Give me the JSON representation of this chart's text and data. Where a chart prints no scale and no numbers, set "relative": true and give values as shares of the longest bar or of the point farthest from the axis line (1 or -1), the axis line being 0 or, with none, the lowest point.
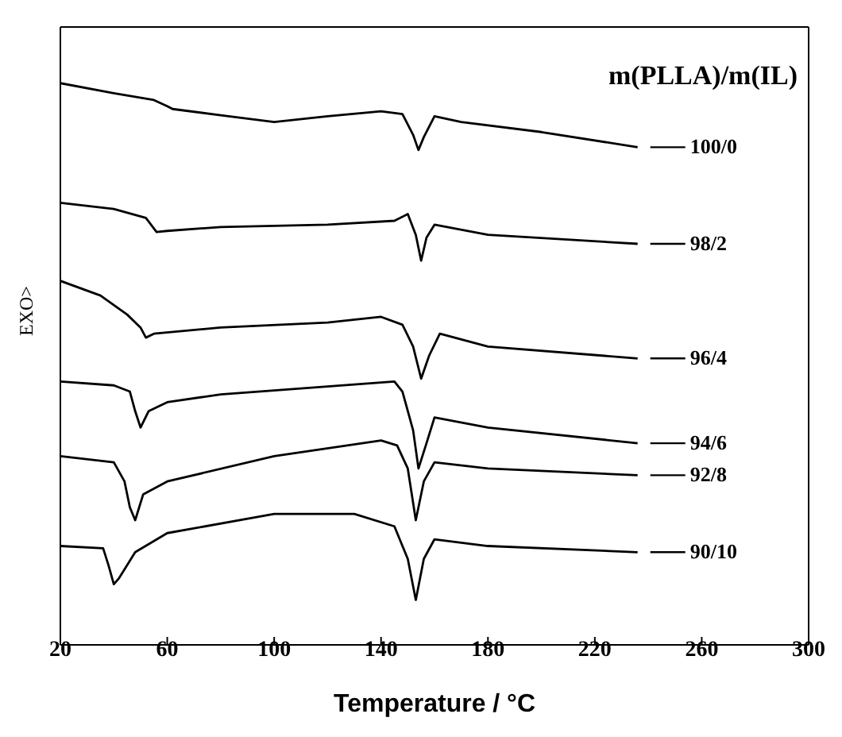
{
  "chart_data": {
    "type": "line",
    "xlabel": "Temperature / °C",
    "ylabel": "EXO>",
    "legend_title": "m(PLLA)/m(IL)",
    "relative": true,
    "xlim": [
      20,
      300
    ],
    "xticks": [
      20,
      60,
      100,
      140,
      180,
      220,
      260,
      300
    ],
    "marker": "none",
    "legend": "right",
    "line_style": "solid",
    "series": [
      {
        "name": "100/0",
        "color": "#000000",
        "x": [
          20,
          40,
          55,
          60,
          62,
          80,
          100,
          120,
          140,
          148,
          152,
          154,
          156,
          160,
          170,
          200,
          236
        ],
        "values": [
          1.0,
          0.982,
          0.97,
          0.959,
          0.954,
          0.943,
          0.931,
          0.941,
          0.95,
          0.945,
          0.908,
          0.881,
          0.904,
          0.941,
          0.931,
          0.913,
          0.886
        ]
      },
      {
        "name": "98/2",
        "color": "#000000",
        "x": [
          20,
          40,
          52,
          56,
          60,
          80,
          120,
          145,
          150,
          153,
          155,
          157,
          160,
          180,
          236
        ],
        "values": [
          0.787,
          0.776,
          0.76,
          0.735,
          0.737,
          0.744,
          0.748,
          0.755,
          0.767,
          0.73,
          0.684,
          0.725,
          0.748,
          0.73,
          0.714
        ]
      },
      {
        "name": "96/4",
        "color": "#000000",
        "x": [
          20,
          35,
          45,
          50,
          52,
          55,
          80,
          120,
          140,
          148,
          152,
          155,
          158,
          162,
          180,
          236
        ],
        "values": [
          0.648,
          0.622,
          0.588,
          0.565,
          0.547,
          0.554,
          0.565,
          0.574,
          0.584,
          0.57,
          0.531,
          0.474,
          0.515,
          0.554,
          0.531,
          0.51
        ]
      },
      {
        "name": "94/6",
        "color": "#000000",
        "x": [
          20,
          40,
          46,
          48,
          50,
          53,
          60,
          80,
          120,
          145,
          148,
          152,
          154,
          157,
          160,
          180,
          236
        ],
        "values": [
          0.469,
          0.462,
          0.451,
          0.416,
          0.387,
          0.416,
          0.432,
          0.446,
          0.46,
          0.469,
          0.451,
          0.382,
          0.314,
          0.359,
          0.405,
          0.387,
          0.359
        ]
      },
      {
        "name": "92/8",
        "color": "#000000",
        "x": [
          20,
          40,
          44,
          46,
          48,
          51,
          60,
          100,
          140,
          146,
          150,
          153,
          156,
          160,
          180,
          236
        ],
        "values": [
          0.336,
          0.325,
          0.291,
          0.245,
          0.222,
          0.268,
          0.291,
          0.336,
          0.364,
          0.355,
          0.314,
          0.222,
          0.291,
          0.325,
          0.314,
          0.302
        ]
      },
      {
        "name": "90/10",
        "color": "#000000",
        "x": [
          20,
          36,
          38,
          40,
          42,
          48,
          60,
          100,
          130,
          145,
          150,
          153,
          156,
          160,
          180,
          236
        ],
        "values": [
          0.176,
          0.172,
          0.142,
          0.108,
          0.119,
          0.165,
          0.199,
          0.233,
          0.233,
          0.211,
          0.153,
          0.08,
          0.153,
          0.188,
          0.176,
          0.165
        ]
      }
    ]
  }
}
